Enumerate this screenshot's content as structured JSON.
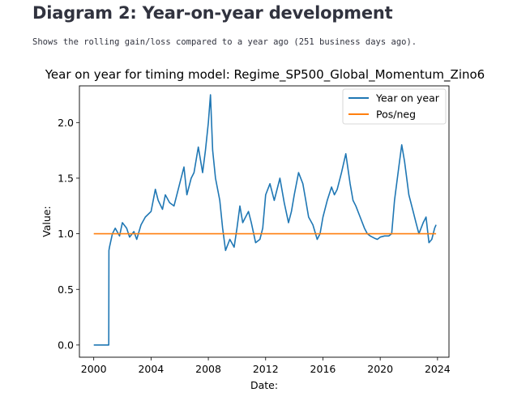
{
  "page": {
    "heading": "Diagram 2: Year-on-year development",
    "caption": "Shows the rolling gain/loss compared to a year ago (251 business days ago)."
  },
  "chart_data": {
    "type": "line",
    "title": "Year on year for timing model: Regime_SP500_Global_Momentum_Zino6",
    "xlabel": "Date:",
    "ylabel": "Value:",
    "xlim": [
      1999.0,
      2024.8
    ],
    "ylim": [
      -0.11,
      2.33
    ],
    "xticks": [
      2000,
      2004,
      2008,
      2012,
      2016,
      2020,
      2024
    ],
    "yticks": [
      0.0,
      0.5,
      1.0,
      1.5,
      2.0
    ],
    "ytick_labels": [
      "0.0",
      "0.5",
      "1.0",
      "1.5",
      "2.0"
    ],
    "legend_position": "top-right",
    "series": [
      {
        "name": "Year on year",
        "color": "#1f77b4",
        "x": [
          2000.0,
          2001.05,
          2001.06,
          2001.1,
          2001.3,
          2001.5,
          2001.8,
          2002.0,
          2002.3,
          2002.5,
          2002.8,
          2003.0,
          2003.3,
          2003.6,
          2004.0,
          2004.3,
          2004.5,
          2004.8,
          2005.0,
          2005.3,
          2005.6,
          2006.0,
          2006.3,
          2006.5,
          2006.8,
          2007.0,
          2007.3,
          2007.6,
          2007.8,
          2008.0,
          2008.15,
          2008.3,
          2008.5,
          2008.8,
          2009.0,
          2009.2,
          2009.5,
          2009.8,
          2010.0,
          2010.2,
          2010.4,
          2010.6,
          2010.8,
          2011.0,
          2011.3,
          2011.6,
          2011.8,
          2012.0,
          2012.3,
          2012.6,
          2013.0,
          2013.3,
          2013.6,
          2013.8,
          2014.0,
          2014.3,
          2014.6,
          2014.8,
          2015.0,
          2015.3,
          2015.6,
          2015.8,
          2016.0,
          2016.3,
          2016.6,
          2016.8,
          2017.0,
          2017.3,
          2017.6,
          2017.9,
          2018.1,
          2018.3,
          2018.6,
          2018.9,
          2019.1,
          2019.3,
          2019.6,
          2019.8,
          2020.0,
          2020.3,
          2020.6,
          2020.8,
          2021.0,
          2021.3,
          2021.5,
          2021.7,
          2022.0,
          2022.3,
          2022.5,
          2022.7,
          2023.0,
          2023.2,
          2023.4,
          2023.6,
          2023.8,
          2023.9
        ],
        "y": [
          0.0,
          0.0,
          0.85,
          0.88,
          1.0,
          1.05,
          0.98,
          1.1,
          1.05,
          0.97,
          1.02,
          0.95,
          1.08,
          1.15,
          1.2,
          1.4,
          1.3,
          1.22,
          1.35,
          1.28,
          1.25,
          1.45,
          1.6,
          1.35,
          1.5,
          1.55,
          1.78,
          1.55,
          1.75,
          2.0,
          2.25,
          1.75,
          1.5,
          1.3,
          1.05,
          0.85,
          0.95,
          0.88,
          1.05,
          1.25,
          1.1,
          1.15,
          1.2,
          1.1,
          0.92,
          0.95,
          1.05,
          1.35,
          1.45,
          1.3,
          1.5,
          1.28,
          1.1,
          1.2,
          1.35,
          1.55,
          1.45,
          1.3,
          1.15,
          1.08,
          0.95,
          1.0,
          1.15,
          1.3,
          1.42,
          1.35,
          1.4,
          1.55,
          1.72,
          1.45,
          1.3,
          1.25,
          1.15,
          1.05,
          1.0,
          0.98,
          0.96,
          0.95,
          0.97,
          0.98,
          0.98,
          1.0,
          1.3,
          1.6,
          1.8,
          1.65,
          1.35,
          1.2,
          1.1,
          1.0,
          1.1,
          1.15,
          0.92,
          0.95,
          1.05,
          1.08
        ]
      },
      {
        "name": "Pos/neg",
        "color": "#ff7f0e",
        "x": [
          2000.0,
          2023.9
        ],
        "y": [
          1.0,
          1.0
        ]
      }
    ]
  }
}
